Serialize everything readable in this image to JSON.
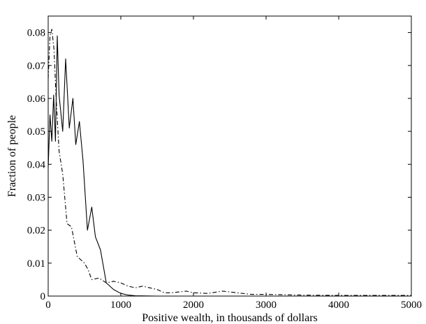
{
  "chart_data": {
    "type": "line",
    "title": "",
    "xlabel": "Positive wealth, in thousands of dollars",
    "ylabel": "Fraction of people",
    "xlim": [
      0,
      5000
    ],
    "ylim": [
      0,
      0.085
    ],
    "xticks": [
      0,
      1000,
      2000,
      3000,
      4000,
      5000
    ],
    "xtick_labels": [
      "0",
      "1000",
      "2000",
      "3000",
      "4000",
      "5000"
    ],
    "yticks": [
      0,
      0.01,
      0.02,
      0.03,
      0.04,
      0.05,
      0.06,
      0.07,
      0.08
    ],
    "ytick_labels": [
      "0",
      "0.01",
      "0.02",
      "0.03",
      "0.04",
      "0.05",
      "0.06",
      "0.07",
      "0.08"
    ],
    "grid": false,
    "legend": "none",
    "series": [
      {
        "style": "solid",
        "color": "#000000",
        "points": [
          [
            0,
            0.039
          ],
          [
            25,
            0.055
          ],
          [
            50,
            0.047
          ],
          [
            75,
            0.061
          ],
          [
            100,
            0.047
          ],
          [
            125,
            0.079
          ],
          [
            150,
            0.061
          ],
          [
            200,
            0.05
          ],
          [
            240,
            0.072
          ],
          [
            290,
            0.051
          ],
          [
            340,
            0.06
          ],
          [
            380,
            0.046
          ],
          [
            430,
            0.053
          ],
          [
            480,
            0.041
          ],
          [
            540,
            0.02
          ],
          [
            600,
            0.027
          ],
          [
            650,
            0.018
          ],
          [
            720,
            0.014
          ],
          [
            800,
            0.004
          ],
          [
            900,
            0.002
          ],
          [
            1000,
            0.0008
          ],
          [
            1100,
            0.0003
          ],
          [
            1200,
            0.0001
          ],
          [
            1500,
            0.0
          ],
          [
            2000,
            0.0
          ],
          [
            3000,
            0.0
          ],
          [
            4000,
            0.0
          ],
          [
            5000,
            0.0
          ]
        ]
      },
      {
        "style": "dash-dot",
        "color": "#000000",
        "points": [
          [
            0,
            0.066
          ],
          [
            25,
            0.079
          ],
          [
            50,
            0.081
          ],
          [
            80,
            0.075
          ],
          [
            110,
            0.06
          ],
          [
            150,
            0.044
          ],
          [
            200,
            0.037
          ],
          [
            260,
            0.022
          ],
          [
            320,
            0.021
          ],
          [
            400,
            0.012
          ],
          [
            450,
            0.011
          ],
          [
            500,
            0.01
          ],
          [
            550,
            0.008
          ],
          [
            600,
            0.005
          ],
          [
            700,
            0.0055
          ],
          [
            800,
            0.004
          ],
          [
            900,
            0.0045
          ],
          [
            1000,
            0.004
          ],
          [
            1100,
            0.003
          ],
          [
            1200,
            0.0025
          ],
          [
            1300,
            0.003
          ],
          [
            1400,
            0.0025
          ],
          [
            1500,
            0.002
          ],
          [
            1600,
            0.001
          ],
          [
            1700,
            0.001
          ],
          [
            1900,
            0.0015
          ],
          [
            2000,
            0.001
          ],
          [
            2200,
            0.0008
          ],
          [
            2400,
            0.0015
          ],
          [
            2600,
            0.001
          ],
          [
            2800,
            0.0005
          ],
          [
            3000,
            0.0005
          ],
          [
            3500,
            0.0003
          ],
          [
            4000,
            0.0002
          ],
          [
            4500,
            0.0002
          ],
          [
            5000,
            0.0002
          ]
        ]
      }
    ]
  }
}
